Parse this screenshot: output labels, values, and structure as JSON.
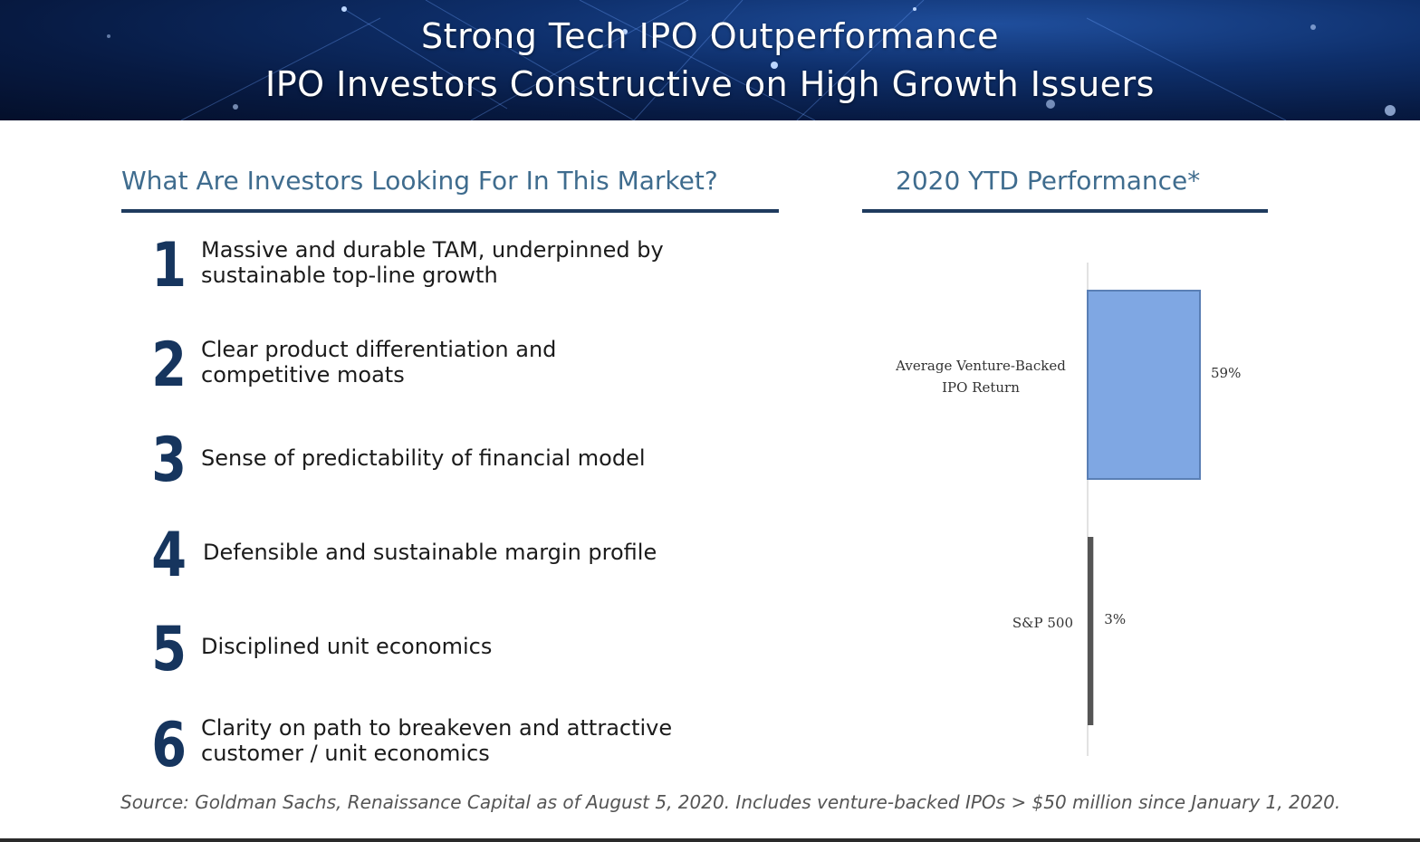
{
  "header": {
    "title_line1": "Strong Tech IPO Outperformance",
    "title_line2": "IPO Investors Constructive on High Growth Issuers"
  },
  "left": {
    "heading": "What Are Investors Looking For In This Market?",
    "items": [
      {
        "number": "1",
        "text": "Massive and durable TAM, underpinned by sustainable top-line growth"
      },
      {
        "number": "2",
        "text": "Clear product differentiation and competitive moats"
      },
      {
        "number": "3",
        "text": "Sense of predictability of financial model"
      },
      {
        "number": "4",
        "text": "Defensible and sustainable margin profile"
      },
      {
        "number": "5",
        "text": "Disciplined unit economics"
      },
      {
        "number": "6",
        "text": "Clarity on path to breakeven and attractive customer / unit economics"
      }
    ]
  },
  "right": {
    "heading": "2020 YTD Performance*"
  },
  "chart_data": {
    "type": "bar",
    "orientation": "horizontal",
    "categories": [
      "Average Venture-Backed IPO Return",
      "S&P 500"
    ],
    "values": [
      59,
      3
    ],
    "value_labels": [
      "59%",
      "3%"
    ],
    "colors": [
      "#7fa7e3",
      "#555555"
    ],
    "xlim": [
      0,
      59
    ]
  },
  "footer": {
    "source": "Source: Goldman Sachs, Renaissance Capital as of August 5, 2020. Includes venture-backed IPOs > $50 million since January 1, 2020."
  }
}
